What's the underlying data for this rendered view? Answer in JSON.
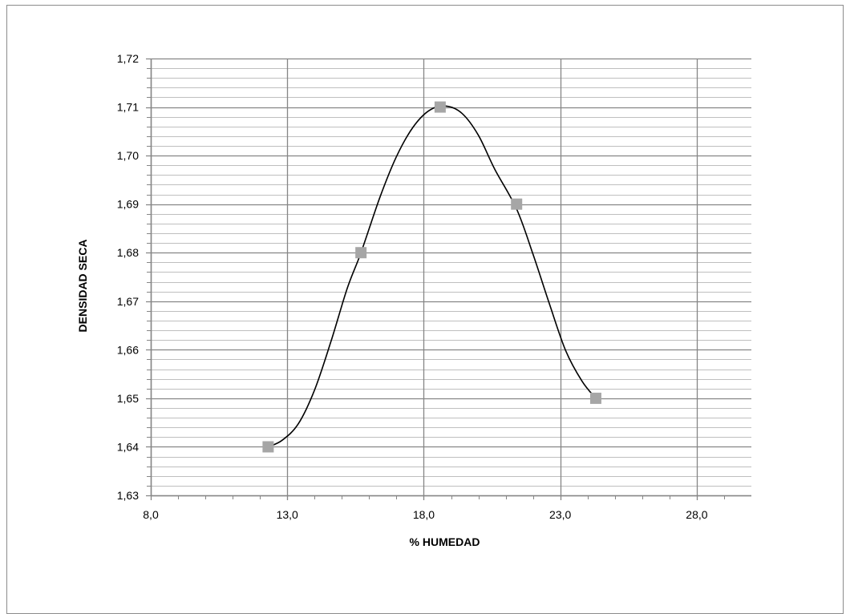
{
  "chart_data": {
    "type": "scatter",
    "title": "",
    "xlabel": "% HUMEDAD",
    "ylabel": "DENSIDAD SECA",
    "xlim": [
      8.0,
      30.0
    ],
    "ylim": [
      1.63,
      1.72
    ],
    "x_ticks": [
      8.0,
      13.0,
      18.0,
      23.0,
      28.0
    ],
    "x_tick_labels": [
      "8,0",
      "13,0",
      "18,0",
      "23,0",
      "28,0"
    ],
    "y_ticks": [
      1.63,
      1.64,
      1.65,
      1.66,
      1.67,
      1.68,
      1.69,
      1.7,
      1.71,
      1.72
    ],
    "y_tick_labels": [
      "1,63",
      "1,64",
      "1,65",
      "1,66",
      "1,67",
      "1,68",
      "1,69",
      "1,70",
      "1,71",
      "1,72"
    ],
    "x_minor_step": 1.0,
    "y_minor_step": 0.002,
    "grid": true,
    "legend": "none",
    "series": [
      {
        "marker": "square",
        "color": "#a6a6a6",
        "points": [
          {
            "x": 12.3,
            "y": 1.64
          },
          {
            "x": 15.7,
            "y": 1.68
          },
          {
            "x": 18.6,
            "y": 1.71
          },
          {
            "x": 21.4,
            "y": 1.69
          },
          {
            "x": 24.3,
            "y": 1.65
          }
        ]
      }
    ],
    "trendline": {
      "kind": "smooth",
      "color": "#000000",
      "points": [
        {
          "x": 12.3,
          "y": 1.64
        },
        {
          "x": 12.8,
          "y": 1.6413
        },
        {
          "x": 13.4,
          "y": 1.6447
        },
        {
          "x": 14.0,
          "y": 1.6517
        },
        {
          "x": 14.6,
          "y": 1.6617
        },
        {
          "x": 15.2,
          "y": 1.6727
        },
        {
          "x": 15.7,
          "y": 1.68
        },
        {
          "x": 16.4,
          "y": 1.6915
        },
        {
          "x": 17.0,
          "y": 1.6998
        },
        {
          "x": 17.6,
          "y": 1.7058
        },
        {
          "x": 18.2,
          "y": 1.7093
        },
        {
          "x": 18.8,
          "y": 1.7102
        },
        {
          "x": 19.4,
          "y": 1.7087
        },
        {
          "x": 20.0,
          "y": 1.7042
        },
        {
          "x": 20.6,
          "y": 1.6972
        },
        {
          "x": 21.4,
          "y": 1.689
        },
        {
          "x": 22.0,
          "y": 1.6797
        },
        {
          "x": 22.6,
          "y": 1.6695
        },
        {
          "x": 23.2,
          "y": 1.6598
        },
        {
          "x": 23.8,
          "y": 1.6535
        },
        {
          "x": 24.3,
          "y": 1.65
        }
      ]
    },
    "colors": {
      "major_grid": "#868686",
      "minor_grid": "#bfbfbf",
      "axis": "#868686",
      "marker": "#a6a6a6",
      "curve": "#000000"
    }
  }
}
